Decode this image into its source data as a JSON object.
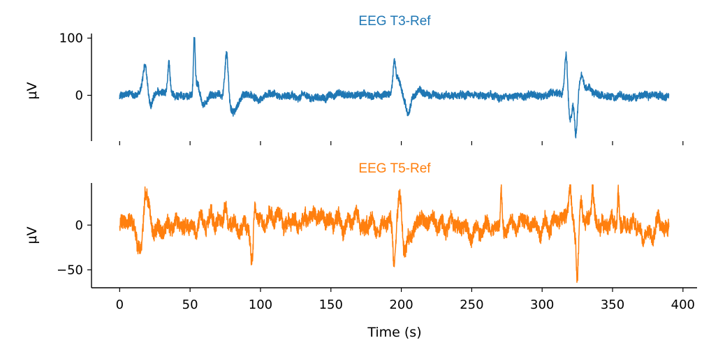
{
  "chart_data": [
    {
      "type": "line",
      "title": "EEG T3-Ref",
      "color": "#1f77b4",
      "xlabel": "",
      "ylabel": "µV",
      "xlim": [
        -20,
        410
      ],
      "ylim": [
        -80,
        108
      ],
      "yticks": [
        0,
        100
      ],
      "xticks": [
        0,
        50,
        100,
        150,
        200,
        250,
        300,
        350,
        400
      ],
      "xtick_labels_visible": false,
      "x_range": [
        0,
        390
      ],
      "baseline_noise_uV": 6,
      "events": [
        {
          "t": 18,
          "amp": 50,
          "width": 1.6
        },
        {
          "t": 22,
          "amp": -25,
          "width": 1.5
        },
        {
          "t": 35,
          "amp": 55,
          "width": 0.8
        },
        {
          "t": 53,
          "amp": 98,
          "width": 0.6
        },
        {
          "t": 55,
          "amp": 25,
          "width": 1.5
        },
        {
          "t": 60,
          "amp": -15,
          "width": 2
        },
        {
          "t": 76,
          "amp": 88,
          "width": 1.2
        },
        {
          "t": 79,
          "amp": -25,
          "width": 2.5
        },
        {
          "t": 83,
          "amp": -15,
          "width": 2
        },
        {
          "t": 195,
          "amp": 60,
          "width": 1
        },
        {
          "t": 198,
          "amp": 30,
          "width": 1.5
        },
        {
          "t": 205,
          "amp": -35,
          "width": 1.5
        },
        {
          "t": 213,
          "amp": 10,
          "width": 2
        },
        {
          "t": 317,
          "amp": 70,
          "width": 1
        },
        {
          "t": 320,
          "amp": -45,
          "width": 1.2
        },
        {
          "t": 324,
          "amp": -70,
          "width": 1
        },
        {
          "t": 328,
          "amp": 35,
          "width": 1.5
        },
        {
          "t": 333,
          "amp": 15,
          "width": 2
        }
      ]
    },
    {
      "type": "line",
      "title": "EEG T5-Ref",
      "color": "#ff7f0e",
      "xlabel": "Time (s)",
      "ylabel": "µV",
      "xlim": [
        -20,
        410
      ],
      "ylim": [
        -70,
        47
      ],
      "yticks": [
        -50,
        0
      ],
      "xticks": [
        0,
        50,
        100,
        150,
        200,
        250,
        300,
        350,
        400
      ],
      "xtick_labels_visible": true,
      "x_range": [
        0,
        390
      ],
      "baseline_noise_uV": 8,
      "events": [
        {
          "t": 15,
          "amp": -30,
          "width": 2
        },
        {
          "t": 18,
          "amp": 40,
          "width": 1.2
        },
        {
          "t": 20,
          "amp": 30,
          "width": 1.5
        },
        {
          "t": 75,
          "amp": 20,
          "width": 1
        },
        {
          "t": 94,
          "amp": -35,
          "width": 1
        },
        {
          "t": 96,
          "amp": 30,
          "width": 0.8
        },
        {
          "t": 195,
          "amp": -45,
          "width": 1
        },
        {
          "t": 199,
          "amp": 38,
          "width": 1.2
        },
        {
          "t": 203,
          "amp": -30,
          "width": 1.5
        },
        {
          "t": 271,
          "amp": 38,
          "width": 0.6
        },
        {
          "t": 320,
          "amp": 30,
          "width": 1
        },
        {
          "t": 325,
          "amp": -62,
          "width": 0.8
        },
        {
          "t": 328,
          "amp": 20,
          "width": 1
        },
        {
          "t": 336,
          "amp": 30,
          "width": 1
        },
        {
          "t": 354,
          "amp": 40,
          "width": 0.6
        }
      ]
    }
  ]
}
